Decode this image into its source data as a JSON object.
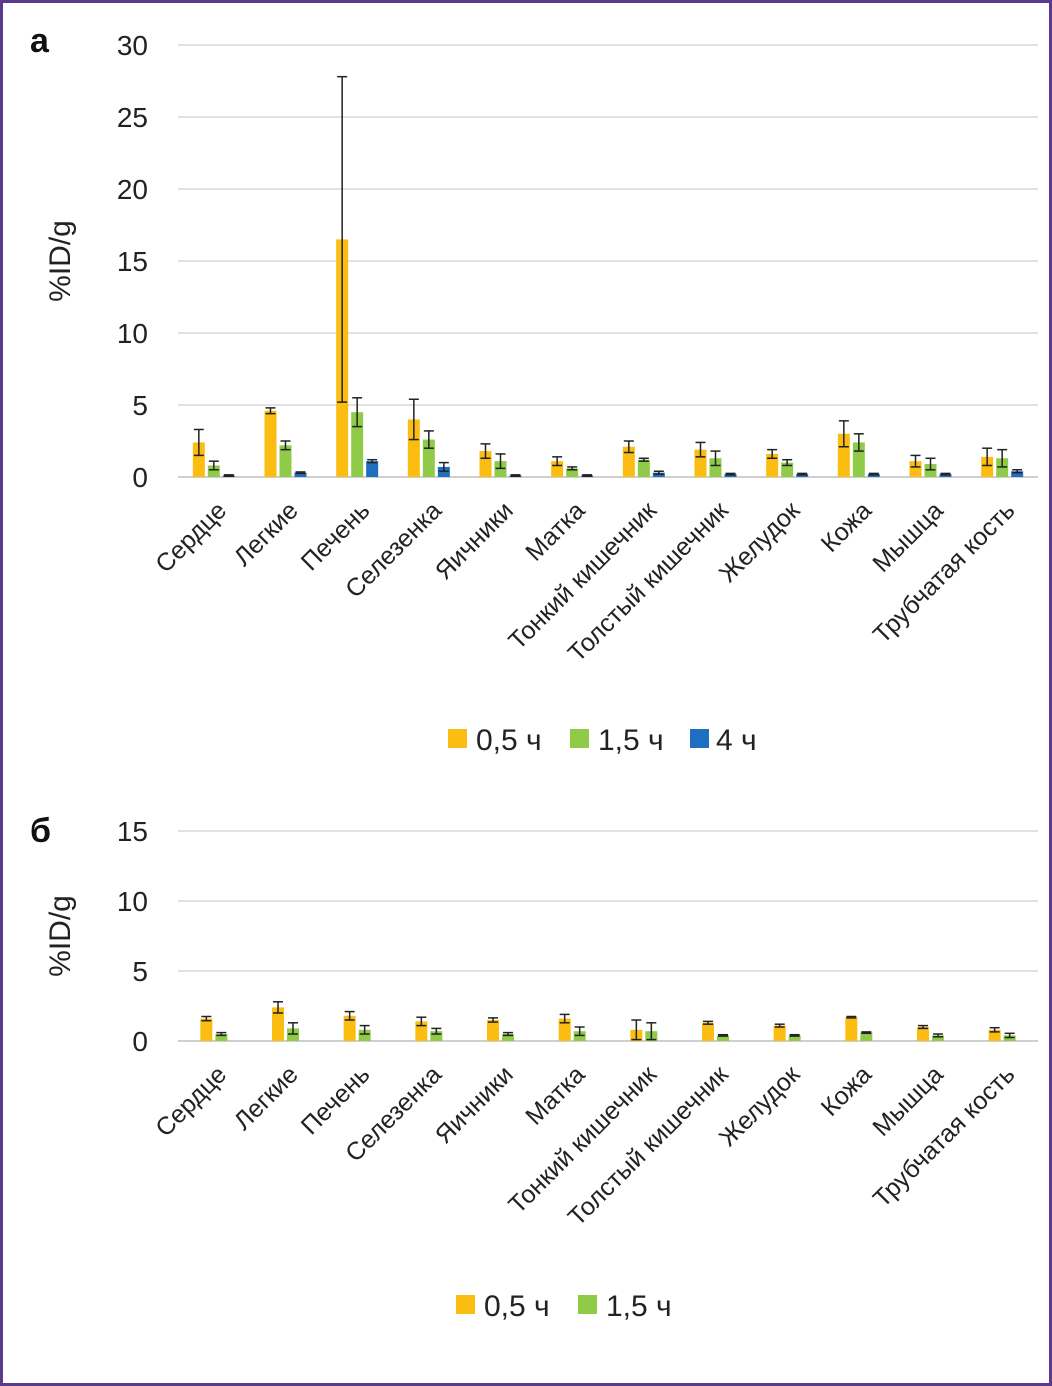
{
  "colors": {
    "s0": "#fbbd12",
    "s1": "#8fcb49",
    "s2": "#1f6fc0",
    "grid": "#d9d9d9",
    "err": "#222222",
    "frame": "#5b3a8e"
  },
  "chart_data": [
    {
      "type": "bar",
      "panel_label": "а",
      "ylabel": "%ID/g",
      "ylim": [
        0,
        30
      ],
      "yticks": [
        0,
        5,
        10,
        15,
        20,
        25,
        30
      ],
      "grid": true,
      "legend_position": "bottom",
      "categories": [
        "Сердце",
        "Легкие",
        "Печень",
        "Селезенка",
        "Яичники",
        "Матка",
        "Тонкий кишечник",
        "Толстый кишечник",
        "Желудок",
        "Кожа",
        "Мышца",
        "Трубчатая кость"
      ],
      "series": [
        {
          "name": "0,5 ч",
          "values": [
            2.4,
            4.6,
            16.5,
            4.0,
            1.8,
            1.1,
            2.1,
            1.9,
            1.6,
            3.0,
            1.1,
            1.4
          ],
          "errors": [
            0.9,
            0.2,
            11.3,
            1.4,
            0.5,
            0.3,
            0.4,
            0.5,
            0.3,
            0.9,
            0.4,
            0.6
          ]
        },
        {
          "name": "1,5 ч",
          "values": [
            0.8,
            2.2,
            4.5,
            2.6,
            1.1,
            0.6,
            1.2,
            1.3,
            1.0,
            2.4,
            0.9,
            1.3
          ],
          "errors": [
            0.3,
            0.3,
            1.0,
            0.6,
            0.5,
            0.1,
            0.1,
            0.5,
            0.2,
            0.6,
            0.4,
            0.6
          ]
        },
        {
          "name": "4 ч",
          "values": [
            0.1,
            0.3,
            1.1,
            0.7,
            0.1,
            0.1,
            0.3,
            0.2,
            0.2,
            0.2,
            0.2,
            0.4
          ],
          "errors": [
            0.05,
            0.05,
            0.1,
            0.3,
            0.05,
            0.05,
            0.1,
            0.05,
            0.05,
            0.05,
            0.05,
            0.1
          ]
        }
      ]
    },
    {
      "type": "bar",
      "panel_label": "б",
      "ylabel": "%ID/g",
      "ylim": [
        0,
        15
      ],
      "yticks": [
        0,
        5,
        10,
        15
      ],
      "grid": true,
      "legend_position": "bottom",
      "categories": [
        "Сердце",
        "Легкие",
        "Печень",
        "Селезенка",
        "Яичники",
        "Матка",
        "Тонкий кишечник",
        "Толстый кишечник",
        "Желудок",
        "Кожа",
        "Мышца",
        "Трубчатая кость"
      ],
      "series": [
        {
          "name": "0,5 ч",
          "values": [
            1.6,
            2.4,
            1.8,
            1.4,
            1.5,
            1.6,
            0.8,
            1.3,
            1.1,
            1.7,
            1.0,
            0.8
          ],
          "errors": [
            0.15,
            0.4,
            0.3,
            0.3,
            0.15,
            0.3,
            0.7,
            0.1,
            0.1,
            0.05,
            0.1,
            0.15
          ]
        },
        {
          "name": "1,5 ч",
          "values": [
            0.5,
            0.9,
            0.8,
            0.7,
            0.5,
            0.7,
            0.7,
            0.4,
            0.4,
            0.6,
            0.4,
            0.4
          ],
          "errors": [
            0.1,
            0.4,
            0.3,
            0.2,
            0.1,
            0.3,
            0.6,
            0.05,
            0.05,
            0.05,
            0.1,
            0.15
          ]
        }
      ]
    }
  ]
}
